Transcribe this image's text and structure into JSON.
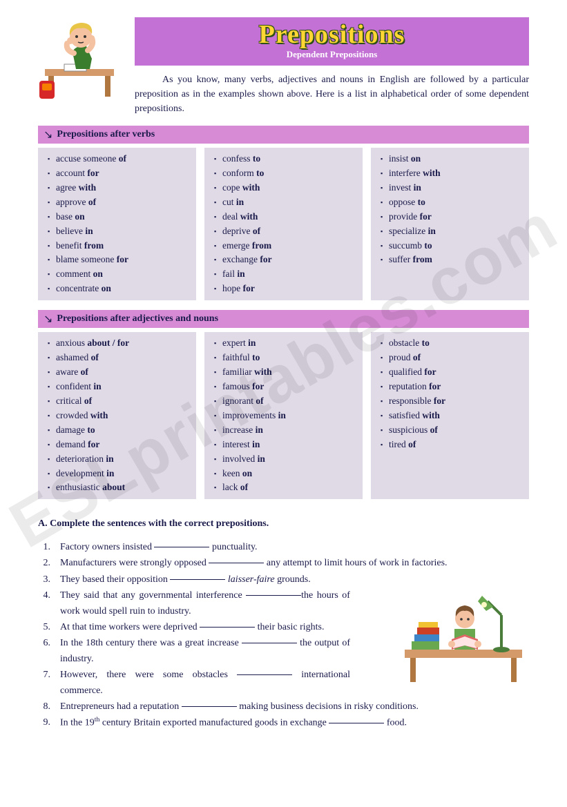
{
  "header": {
    "title": "Prepositions",
    "subtitle": "Dependent Prepositions"
  },
  "intro": "As you know, many verbs, adjectives and nouns in English are followed by a particular preposition as in the examples shown above. Here is a list in alphabetical order of some dependent prepositions.",
  "watermark": "ESLprintables.com",
  "sections": [
    {
      "label": "Prepositions after verbs",
      "cols": [
        [
          {
            "t": "accuse someone ",
            "b": "of"
          },
          {
            "t": "account ",
            "b": "for"
          },
          {
            "t": "agree ",
            "b": "with"
          },
          {
            "t": "approve ",
            "b": "of"
          },
          {
            "t": "base ",
            "b": "on"
          },
          {
            "t": "believe ",
            "b": "in"
          },
          {
            "t": "benefit ",
            "b": "from"
          },
          {
            "t": "blame someone ",
            "b": "for"
          },
          {
            "t": "comment ",
            "b": "on"
          },
          {
            "t": "concentrate ",
            "b": "on"
          }
        ],
        [
          {
            "t": "confess ",
            "b": "to"
          },
          {
            "t": "conform ",
            "b": "to"
          },
          {
            "t": "cope ",
            "b": "with"
          },
          {
            "t": "cut ",
            "b": "in"
          },
          {
            "t": "deal ",
            "b": "with"
          },
          {
            "t": "deprive ",
            "b": "of"
          },
          {
            "t": "emerge ",
            "b": "from"
          },
          {
            "t": "exchange ",
            "b": "for"
          },
          {
            "t": "fail ",
            "b": "in"
          },
          {
            "t": "hope ",
            "b": "for"
          }
        ],
        [
          {
            "t": "insist ",
            "b": "on"
          },
          {
            "t": "interfere ",
            "b": "with"
          },
          {
            "t": "invest ",
            "b": "in"
          },
          {
            "t": "oppose ",
            "b": "to"
          },
          {
            "t": "provide ",
            "b": "for"
          },
          {
            "t": "specialize ",
            "b": "in"
          },
          {
            "t": "succumb ",
            "b": "to"
          },
          {
            "t": "suffer ",
            "b": "from"
          }
        ]
      ]
    },
    {
      "label": "Prepositions after adjectives and nouns",
      "cols": [
        [
          {
            "t": "anxious ",
            "b": "about / for"
          },
          {
            "t": "ashamed ",
            "b": "of"
          },
          {
            "t": "aware ",
            "b": "of"
          },
          {
            "t": "confident ",
            "b": "in"
          },
          {
            "t": "critical ",
            "b": "of"
          },
          {
            "t": "crowded ",
            "b": "with"
          },
          {
            "t": "damage ",
            "b": "to"
          },
          {
            "t": "demand ",
            "b": "for"
          },
          {
            "t": "deterioration ",
            "b": "in"
          },
          {
            "t": "development ",
            "b": "in"
          },
          {
            "t": "enthusiastic ",
            "b": "about"
          }
        ],
        [
          {
            "t": "expert ",
            "b": "in"
          },
          {
            "t": "faithful ",
            "b": "to"
          },
          {
            "t": "familiar ",
            "b": "with"
          },
          {
            "t": "famous ",
            "b": "for"
          },
          {
            "t": "ignorant ",
            "b": "of"
          },
          {
            "t": "improvements ",
            "b": "in"
          },
          {
            "t": "increase ",
            "b": "in"
          },
          {
            "t": "interest ",
            "b": "in"
          },
          {
            "t": "involved ",
            "b": "in"
          },
          {
            "t": "keen ",
            "b": "on"
          },
          {
            "t": "lack ",
            "b": "of"
          }
        ],
        [
          {
            "t": "obstacle ",
            "b": "to"
          },
          {
            "t": "proud ",
            "b": "of"
          },
          {
            "t": "qualified ",
            "b": "for"
          },
          {
            "t": "reputation ",
            "b": "for"
          },
          {
            "t": "responsible ",
            "b": "for"
          },
          {
            "t": "satisfied ",
            "b": "with"
          },
          {
            "t": "suspicious ",
            "b": "of"
          },
          {
            "t": "tired ",
            "b": "of"
          }
        ]
      ]
    }
  ],
  "exercise": {
    "title": "A. Complete the sentences with the correct prepositions.",
    "items": [
      {
        "n": "1.",
        "pre": "Factory owners insisted ",
        "post": " punctuality.",
        "narrow": false
      },
      {
        "n": "2.",
        "pre": "Manufacturers were strongly opposed ",
        "post": " any attempt to limit hours of work in factories.",
        "narrow": false
      },
      {
        "n": "3.",
        "pre": "They based their opposition ",
        "post": " ",
        "italic": "laisser-faire",
        "post2": " grounds.",
        "narrow": false
      },
      {
        "n": "4.",
        "pre": "They said that any governmental interference ",
        "post": "the hours of work would spell ruin to industry.",
        "narrow": true
      },
      {
        "n": "5.",
        "pre": "At that time workers were deprived ",
        "post": " their basic rights.",
        "narrow": true
      },
      {
        "n": "6.",
        "pre": "In the 18th century there was a great increase ",
        "post": " the output of industry.",
        "narrow": true
      },
      {
        "n": "7.",
        "pre": "However, there were some obstacles ",
        "post": " international commerce.",
        "narrow": true
      },
      {
        "n": "8.",
        "pre": "Entrepreneurs had a reputation ",
        "post": " making business decisions in risky conditions.",
        "narrow": false
      },
      {
        "n": "9.",
        "pre": "In the 19",
        "sup": "th",
        "pre2": " century Britain exported manufactured goods in exchange ",
        "post": " food.",
        "narrow": false
      }
    ]
  },
  "colors": {
    "banner_bg": "#c471d6",
    "title_color": "#ffd633",
    "title_outline": "#2d5016",
    "subtitle_color": "#ffffff",
    "section_bg": "#d68bd4",
    "col_bg": "#e0dae6",
    "text": "#1a1a4a"
  }
}
